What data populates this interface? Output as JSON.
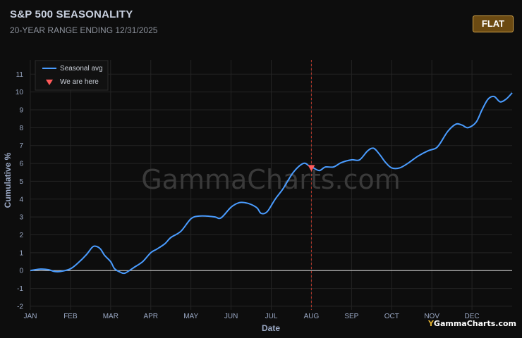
{
  "header": {
    "title": "S&P 500 SEASONALITY",
    "subtitle": "20-YEAR RANGE ENDING 12/31/2025",
    "badge": "FLAT"
  },
  "watermark": "GammaCharts.com",
  "brand": {
    "mark": "Y",
    "text": "GammaCharts.com"
  },
  "colors": {
    "line": "#4a9cff",
    "marker": "#ff5a5a",
    "badge_bg": "#6b4a12",
    "badge_border": "#d9a84a"
  },
  "chart_data": {
    "type": "line",
    "xlabel": "Date",
    "ylabel": "Cumulative %",
    "ylim": [
      -2.2,
      11.8
    ],
    "yticks": [
      -2,
      -1,
      0,
      1,
      2,
      3,
      4,
      5,
      6,
      7,
      8,
      9,
      10,
      11
    ],
    "xticks": [
      "JAN",
      "FEB",
      "MAR",
      "APR",
      "MAY",
      "JUN",
      "JUL",
      "AUG",
      "SEP",
      "OCT",
      "NOV",
      "DEC"
    ],
    "grid": true,
    "legend": {
      "position": "top-left",
      "entries": [
        "Seasonal avg",
        "We are here"
      ]
    },
    "current_month_position": 7.0,
    "current_value": 5.75,
    "series": [
      {
        "name": "Seasonal avg",
        "x": [
          0,
          0.25,
          0.45,
          0.6,
          0.75,
          1.0,
          1.2,
          1.4,
          1.55,
          1.65,
          1.75,
          1.85,
          2.0,
          2.1,
          2.25,
          2.35,
          2.5,
          2.6,
          2.8,
          3.0,
          3.15,
          3.35,
          3.5,
          3.75,
          4.0,
          4.2,
          4.4,
          4.6,
          4.75,
          5.0,
          5.2,
          5.35,
          5.5,
          5.65,
          5.75,
          5.9,
          6.1,
          6.3,
          6.55,
          6.8,
          6.95,
          7.05,
          7.2,
          7.35,
          7.55,
          7.75,
          8.0,
          8.2,
          8.4,
          8.55,
          8.7,
          8.85,
          9.0,
          9.2,
          9.4,
          9.65,
          9.9,
          10.1,
          10.2,
          10.4,
          10.6,
          10.75,
          10.9,
          11.1,
          11.25,
          11.4,
          11.55,
          11.7,
          11.85,
          12.0
        ],
        "y": [
          0,
          0.08,
          0.05,
          -0.05,
          -0.05,
          0.1,
          0.45,
          0.9,
          1.32,
          1.35,
          1.2,
          0.85,
          0.5,
          0.1,
          -0.1,
          -0.15,
          0.05,
          0.2,
          0.5,
          1.0,
          1.2,
          1.5,
          1.85,
          2.2,
          2.9,
          3.05,
          3.05,
          3.0,
          2.95,
          3.55,
          3.8,
          3.8,
          3.7,
          3.5,
          3.2,
          3.3,
          4.0,
          4.6,
          5.5,
          6.0,
          5.85,
          5.75,
          5.6,
          5.8,
          5.8,
          6.05,
          6.2,
          6.2,
          6.7,
          6.85,
          6.5,
          6.05,
          5.75,
          5.75,
          6.0,
          6.4,
          6.7,
          6.85,
          7.1,
          7.8,
          8.2,
          8.15,
          8.0,
          8.3,
          9.0,
          9.6,
          9.75,
          9.45,
          9.6,
          9.95
        ]
      }
    ]
  }
}
